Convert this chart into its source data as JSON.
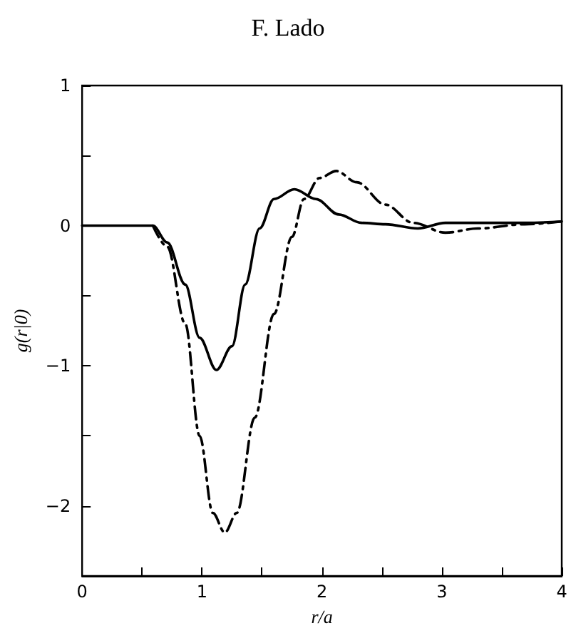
{
  "chart_data": {
    "type": "line",
    "title": "F. Lado",
    "xlabel": "r/a",
    "ylabel": "g(r|0)",
    "xlim": [
      0,
      4
    ],
    "xticks": [
      0,
      {
        "value": 0.5,
        "label": null
      },
      1,
      {
        "value": 1.5,
        "label": null
      },
      2,
      {
        "value": 2.5,
        "label": null
      },
      3,
      {
        "value": 3.5,
        "label": null
      },
      4
    ],
    "ylim": [
      -2.5,
      1
    ],
    "yticks": [
      {
        "value": -2.5,
        "label": null
      },
      -2,
      {
        "value": -1.5,
        "label": null
      },
      -1,
      {
        "value": -0.5,
        "label": null
      },
      0,
      {
        "value": 0.5,
        "label": null
      },
      1
    ],
    "grid": false,
    "marker": "none",
    "series": [
      {
        "color": "#000000",
        "line_style": "solid",
        "x": [
          0,
          0.5,
          0.59,
          0.71,
          0.86,
          0.98,
          1.12,
          1.25,
          1.36,
          1.48,
          1.6,
          1.77,
          1.95,
          2.14,
          2.33,
          2.53,
          2.8,
          3.03,
          3.3,
          3.7,
          4
        ],
        "values": [
          0,
          0,
          0,
          -0.12,
          -0.42,
          -0.8,
          -1.03,
          -0.86,
          -0.42,
          -0.02,
          0.19,
          0.26,
          0.19,
          0.08,
          0.02,
          0.01,
          -0.02,
          0.02,
          0.02,
          0.02,
          0.03
        ]
      },
      {
        "color": "#000000",
        "line_style": "dashed",
        "x": [
          0.59,
          0.71,
          0.86,
          0.98,
          1.09,
          1.19,
          1.29,
          1.44,
          1.6,
          1.75,
          1.85,
          1.98,
          2.12,
          2.29,
          2.53,
          2.76,
          3.03,
          3.3,
          3.69,
          4
        ],
        "values": [
          0,
          -0.15,
          -0.7,
          -1.5,
          -2.05,
          -2.19,
          -2.05,
          -1.37,
          -0.63,
          -0.08,
          0.19,
          0.34,
          0.39,
          0.31,
          0.15,
          0.02,
          -0.05,
          -0.02,
          0.01,
          0.03
        ]
      }
    ]
  }
}
